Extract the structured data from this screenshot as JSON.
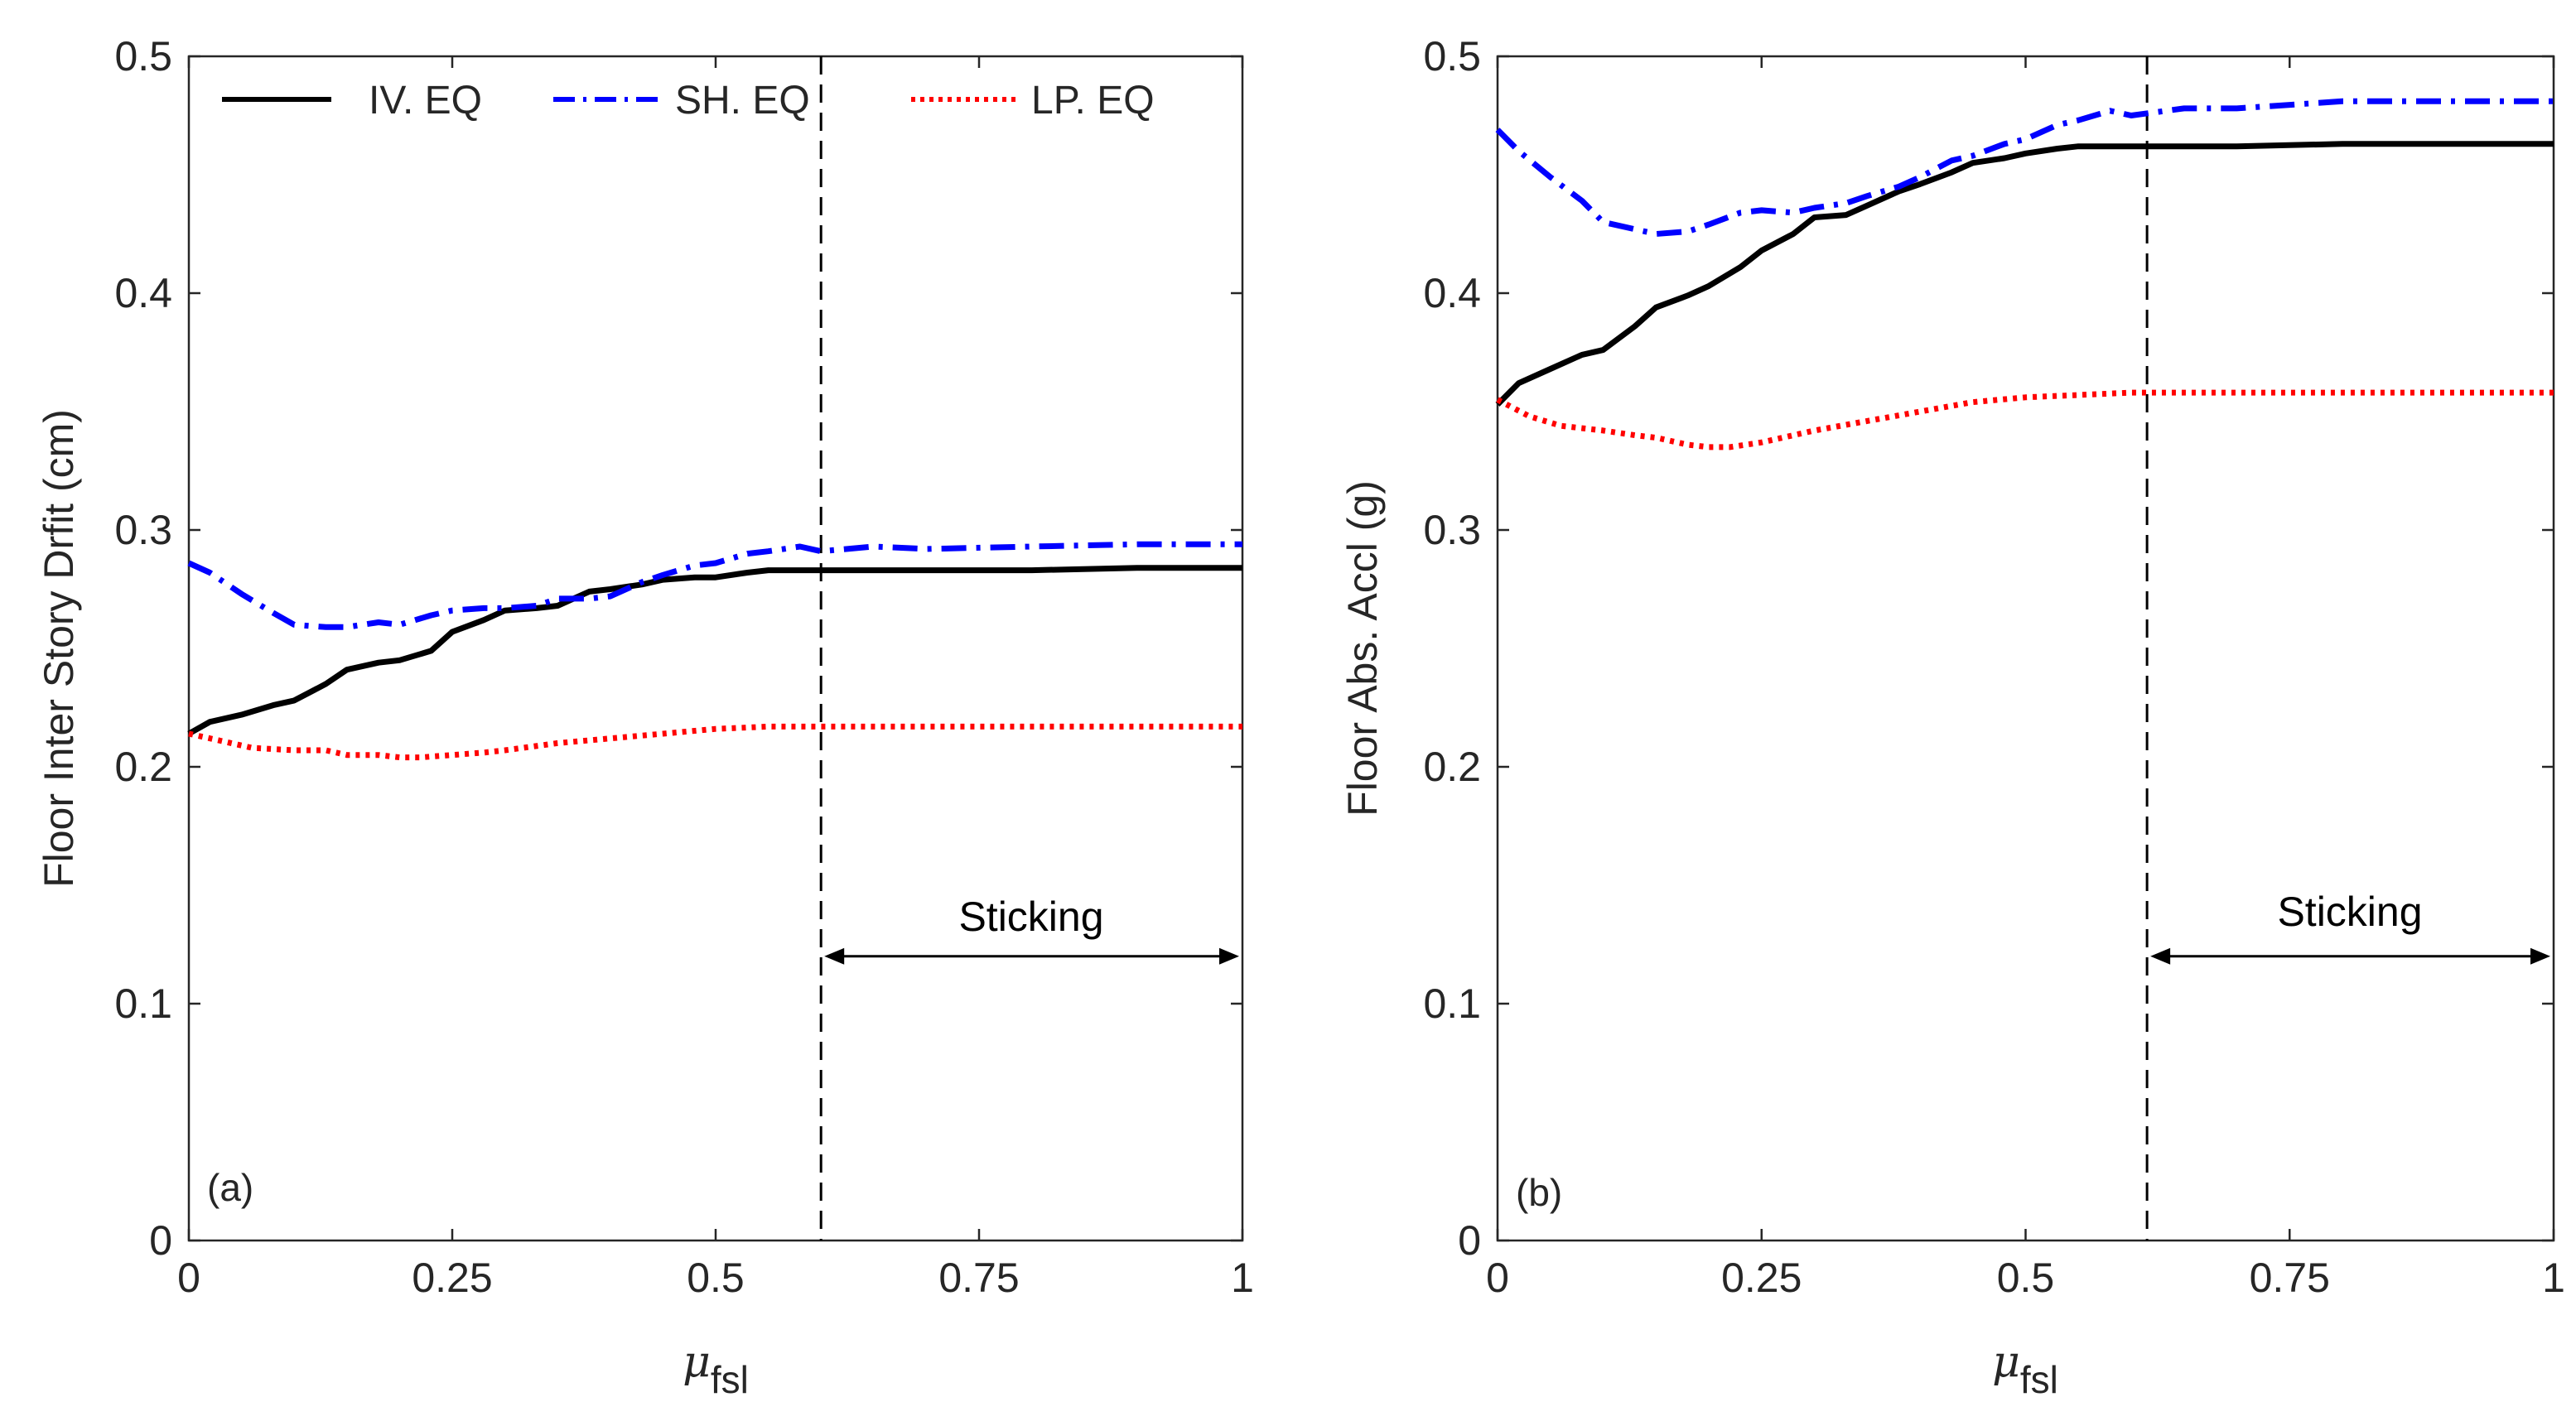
{
  "chart_data": [
    {
      "type": "line",
      "panel_label": "(a)",
      "xlabel_symbol": "μ",
      "xlabel_subscript": "fsl",
      "ylabel": "Floor Inter Story Drfit (cm)",
      "xlim": [
        0,
        1
      ],
      "ylim": [
        0,
        0.5
      ],
      "x_ticks": [
        0,
        0.25,
        0.5,
        0.75,
        1
      ],
      "x_tick_labels": [
        "0",
        "0.25",
        "0.5",
        "0.75",
        "1"
      ],
      "y_ticks": [
        0,
        0.1,
        0.2,
        0.3,
        0.4,
        0.5
      ],
      "y_tick_labels": [
        "0",
        "0.1",
        "0.2",
        "0.3",
        "0.4",
        "0.5"
      ],
      "grid": false,
      "legend": {
        "position": "top",
        "entries": [
          {
            "label": "IV. EQ",
            "series": "iv"
          },
          {
            "label": "SH. EQ",
            "series": "sh"
          },
          {
            "label": "LP. EQ",
            "series": "lp"
          }
        ]
      },
      "vline_x": 0.6,
      "annotation": {
        "text": "Sticking",
        "from_x": 0.6,
        "to_x": 1.0,
        "y": 0.12
      },
      "series": [
        {
          "key": "iv",
          "name": "IV. EQ",
          "color": "#000000",
          "style": "solid",
          "x": [
            0,
            0.02,
            0.05,
            0.08,
            0.1,
            0.13,
            0.15,
            0.18,
            0.2,
            0.23,
            0.25,
            0.28,
            0.3,
            0.33,
            0.35,
            0.38,
            0.4,
            0.43,
            0.45,
            0.48,
            0.5,
            0.53,
            0.55,
            0.6,
            0.7,
            0.8,
            0.9,
            1.0
          ],
          "y": [
            0.214,
            0.219,
            0.222,
            0.226,
            0.228,
            0.235,
            0.241,
            0.244,
            0.245,
            0.249,
            0.257,
            0.262,
            0.266,
            0.267,
            0.268,
            0.274,
            0.275,
            0.277,
            0.279,
            0.28,
            0.28,
            0.282,
            0.283,
            0.283,
            0.283,
            0.283,
            0.284,
            0.284
          ]
        },
        {
          "key": "sh",
          "name": "SH. EQ",
          "color": "#0000ff",
          "style": "dashdot",
          "x": [
            0,
            0.02,
            0.05,
            0.08,
            0.1,
            0.13,
            0.15,
            0.18,
            0.2,
            0.23,
            0.25,
            0.28,
            0.3,
            0.33,
            0.35,
            0.38,
            0.4,
            0.43,
            0.45,
            0.48,
            0.5,
            0.53,
            0.55,
            0.58,
            0.6,
            0.65,
            0.7,
            0.8,
            0.9,
            1.0
          ],
          "y": [
            0.286,
            0.282,
            0.273,
            0.265,
            0.26,
            0.259,
            0.259,
            0.261,
            0.26,
            0.264,
            0.266,
            0.267,
            0.267,
            0.268,
            0.271,
            0.271,
            0.272,
            0.278,
            0.281,
            0.285,
            0.286,
            0.29,
            0.291,
            0.293,
            0.291,
            0.293,
            0.292,
            0.293,
            0.294,
            0.294
          ]
        },
        {
          "key": "lp",
          "name": "LP. EQ",
          "color": "#ff0000",
          "style": "dotted",
          "x": [
            0,
            0.03,
            0.06,
            0.1,
            0.13,
            0.15,
            0.18,
            0.2,
            0.22,
            0.25,
            0.28,
            0.3,
            0.35,
            0.4,
            0.45,
            0.5,
            0.55,
            0.6,
            0.7,
            0.8,
            0.9,
            1.0
          ],
          "y": [
            0.214,
            0.211,
            0.208,
            0.207,
            0.207,
            0.205,
            0.205,
            0.204,
            0.204,
            0.205,
            0.206,
            0.207,
            0.21,
            0.212,
            0.214,
            0.216,
            0.217,
            0.217,
            0.217,
            0.217,
            0.217,
            0.217
          ]
        }
      ]
    },
    {
      "type": "line",
      "panel_label": "(b)",
      "xlabel_symbol": "μ",
      "xlabel_subscript": "fsl",
      "ylabel": "Floor Abs. Accl (g)",
      "xlim": [
        0,
        1
      ],
      "ylim": [
        0,
        0.5
      ],
      "x_ticks": [
        0,
        0.25,
        0.5,
        0.75,
        1
      ],
      "x_tick_labels": [
        "0",
        "0.25",
        "0.5",
        "0.75",
        "1"
      ],
      "y_ticks": [
        0,
        0.1,
        0.2,
        0.3,
        0.4,
        0.5
      ],
      "y_tick_labels": [
        "0",
        "0.1",
        "0.2",
        "0.3",
        "0.4",
        "0.5"
      ],
      "grid": false,
      "vline_x": 0.615,
      "annotation": {
        "text": "Sticking",
        "from_x": 0.615,
        "to_x": 1.0,
        "y": 0.12
      },
      "series": [
        {
          "key": "iv",
          "name": "IV. EQ",
          "color": "#000000",
          "style": "solid",
          "x": [
            0,
            0.02,
            0.05,
            0.08,
            0.1,
            0.13,
            0.15,
            0.18,
            0.2,
            0.23,
            0.25,
            0.28,
            0.3,
            0.33,
            0.35,
            0.38,
            0.4,
            0.43,
            0.45,
            0.48,
            0.5,
            0.53,
            0.55,
            0.6,
            0.7,
            0.8,
            0.9,
            1.0
          ],
          "y": [
            0.353,
            0.362,
            0.368,
            0.374,
            0.376,
            0.386,
            0.394,
            0.399,
            0.403,
            0.411,
            0.418,
            0.425,
            0.432,
            0.433,
            0.437,
            0.443,
            0.446,
            0.451,
            0.455,
            0.457,
            0.459,
            0.461,
            0.462,
            0.462,
            0.462,
            0.463,
            0.463,
            0.463
          ]
        },
        {
          "key": "sh",
          "name": "SH. EQ",
          "color": "#0000ff",
          "style": "dashdot",
          "x": [
            0,
            0.02,
            0.05,
            0.08,
            0.1,
            0.13,
            0.15,
            0.18,
            0.2,
            0.23,
            0.25,
            0.28,
            0.3,
            0.33,
            0.35,
            0.38,
            0.4,
            0.43,
            0.45,
            0.48,
            0.5,
            0.53,
            0.55,
            0.58,
            0.6,
            0.65,
            0.7,
            0.8,
            0.9,
            1.0
          ],
          "y": [
            0.469,
            0.46,
            0.449,
            0.439,
            0.43,
            0.427,
            0.425,
            0.426,
            0.429,
            0.434,
            0.435,
            0.434,
            0.436,
            0.438,
            0.441,
            0.445,
            0.449,
            0.456,
            0.458,
            0.463,
            0.465,
            0.471,
            0.473,
            0.477,
            0.475,
            0.478,
            0.478,
            0.481,
            0.481,
            0.481
          ]
        },
        {
          "key": "lp",
          "name": "LP. EQ",
          "color": "#ff0000",
          "style": "dotted",
          "x": [
            0,
            0.03,
            0.06,
            0.1,
            0.13,
            0.15,
            0.18,
            0.2,
            0.22,
            0.25,
            0.28,
            0.3,
            0.35,
            0.4,
            0.45,
            0.5,
            0.55,
            0.6,
            0.7,
            0.8,
            0.9,
            1.0
          ],
          "y": [
            0.355,
            0.348,
            0.344,
            0.342,
            0.34,
            0.339,
            0.336,
            0.335,
            0.335,
            0.337,
            0.34,
            0.342,
            0.346,
            0.35,
            0.354,
            0.356,
            0.357,
            0.358,
            0.358,
            0.358,
            0.358,
            0.358
          ]
        }
      ]
    }
  ]
}
